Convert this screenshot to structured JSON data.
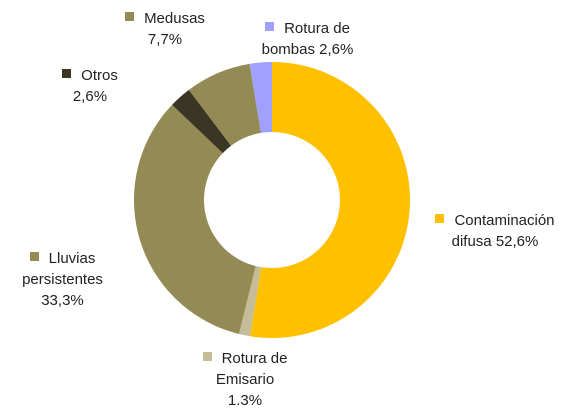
{
  "chart_data": {
    "type": "donut",
    "categories": [
      "Contaminación difusa",
      "Rotura de Emisario",
      "Lluvias persistentes",
      "Otros",
      "Medusas",
      "Rotura de bombas"
    ],
    "values": [
      52.6,
      1.3,
      33.3,
      2.6,
      7.7,
      2.6
    ],
    "value_labels": [
      "52,6%",
      "1.3%",
      "33,3%",
      "2,6%",
      "7,7%",
      "2,6%"
    ],
    "colors": [
      "#FFC000",
      "#C4BD97",
      "#948A54",
      "#3B3624",
      "#948A54",
      "#A0A0FF"
    ]
  }
}
